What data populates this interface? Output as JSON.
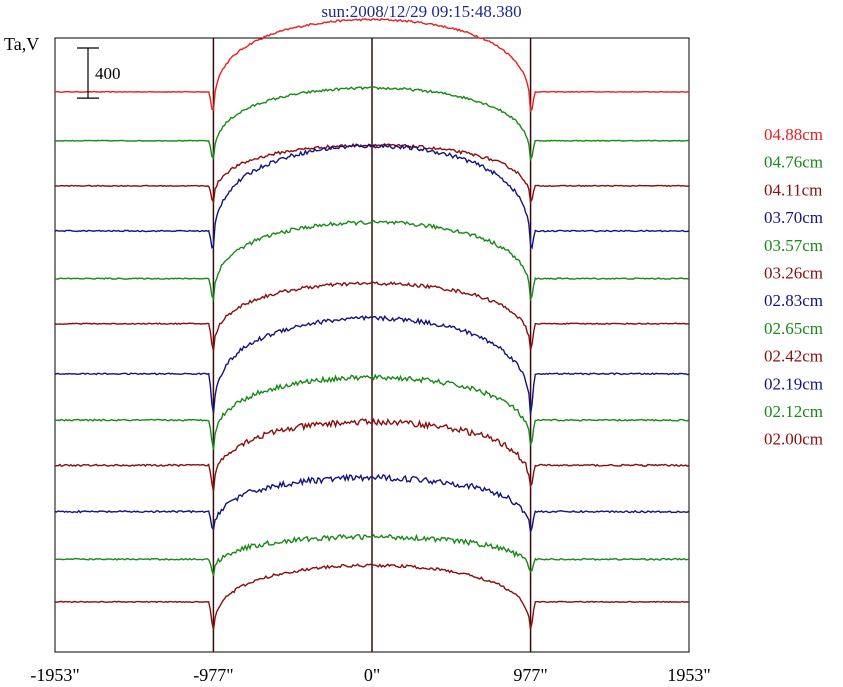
{
  "title": "sun:2008/12/29 09:15:48.380",
  "chart_data": {
    "type": "line",
    "title": "sun:2008/12/29 09:15:48.380",
    "ylabel": "Ta,V",
    "xlabel": "",
    "scale_bar": {
      "label": "400",
      "value": 400
    },
    "xlim": [
      -1953,
      1953
    ],
    "x_ticks": [
      {
        "value": -1953,
        "label": "-1953\""
      },
      {
        "value": -977,
        "label": "-977\""
      },
      {
        "value": 0,
        "label": "0\""
      },
      {
        "value": 977,
        "label": "977\""
      },
      {
        "value": 1953,
        "label": "1953\""
      }
    ],
    "vertical_lines": [
      -977,
      0,
      977
    ],
    "solar_limb": 977,
    "series": [
      {
        "name": "04.88cm",
        "color": "#e8201e",
        "baseline": 2870,
        "center_rise": 610,
        "limb_dip": 220,
        "noise": 4
      },
      {
        "name": "04.76cm",
        "color": "#178a17",
        "baseline": 2480,
        "center_rise": 450,
        "limb_dip": 200,
        "noise": 5
      },
      {
        "name": "04.11cm",
        "color": "#8b0e0e",
        "baseline": 2120,
        "center_rise": 350,
        "limb_dip": 170,
        "noise": 6
      },
      {
        "name": "03.70cm",
        "color": "#141480",
        "baseline": 1760,
        "center_rise": 710,
        "limb_dip": 210,
        "noise": 8
      },
      {
        "name": "03.57cm",
        "color": "#178a17",
        "baseline": 1380,
        "center_rise": 480,
        "limb_dip": 220,
        "noise": 8
      },
      {
        "name": "03.26cm",
        "color": "#8b0e0e",
        "baseline": 1020,
        "center_rise": 360,
        "limb_dip": 260,
        "noise": 7
      },
      {
        "name": "02.83cm",
        "color": "#141480",
        "baseline": 620,
        "center_rise": 500,
        "limb_dip": 380,
        "noise": 9
      },
      {
        "name": "02.65cm",
        "color": "#178a17",
        "baseline": 250,
        "center_rise": 380,
        "limb_dip": 260,
        "noise": 10
      },
      {
        "name": "02.42cm",
        "color": "#8b0e0e",
        "baseline": -110,
        "center_rise": 380,
        "limb_dip": 230,
        "noise": 12
      },
      {
        "name": "02.19cm",
        "color": "#141480",
        "baseline": -480,
        "center_rise": 300,
        "limb_dip": 200,
        "noise": 12
      },
      {
        "name": "02.12cm",
        "color": "#178a17",
        "baseline": -860,
        "center_rise": 200,
        "limb_dip": 140,
        "noise": 10
      },
      {
        "name": "02.00cm",
        "color": "#8b0e0e",
        "baseline": -1200,
        "center_rise": 330,
        "limb_dip": 260,
        "noise": 6
      }
    ],
    "ylim": [
      -1600,
      3300
    ],
    "grid": false,
    "legend_position": "right"
  }
}
